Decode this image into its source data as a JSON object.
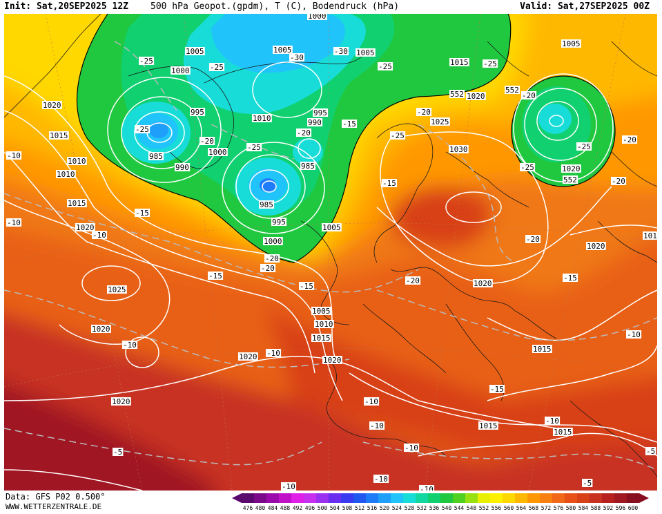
{
  "header": {
    "init": "Init: Sat,20SEP2025 12Z",
    "title": "500 hPa Geopot.(gpdm), T (C), Bodendruck (hPa)",
    "valid": "Valid: Sat,27SEP2025 00Z"
  },
  "footer": {
    "data_source": "Data: GFS P02 0.500°",
    "website": "WWW.WETTERZENTRALE.DE"
  },
  "legend": {
    "values": [
      "476",
      "480",
      "484",
      "488",
      "492",
      "496",
      "500",
      "504",
      "508",
      "512",
      "516",
      "520",
      "524",
      "528",
      "532",
      "536",
      "540",
      "544",
      "548",
      "552",
      "556",
      "560",
      "564",
      "568",
      "572",
      "576",
      "580",
      "584",
      "588",
      "592",
      "596",
      "600"
    ],
    "colors": [
      "#5a0a6e",
      "#7a0a8a",
      "#9a0aaa",
      "#c010c8",
      "#e020e8",
      "#c830f0",
      "#9a30f0",
      "#6a2ef0",
      "#3a3af0",
      "#2058f0",
      "#1e7cf8",
      "#1ea0fa",
      "#20c4fa",
      "#18dcd8",
      "#10d8a0",
      "#10d070",
      "#20c840",
      "#50d020",
      "#98e010",
      "#e8f000",
      "#fff000",
      "#ffd800",
      "#ffb800",
      "#ff9800",
      "#f88010",
      "#f06818",
      "#e85018",
      "#d84018",
      "#c83020",
      "#b82020",
      "#a01820",
      "#880f20"
    ]
  },
  "isobar_labels": [
    {
      "text": "1000"
    },
    {
      "text": "1005"
    },
    {
      "text": "1005"
    },
    {
      "text": "1000"
    },
    {
      "text": "1020"
    },
    {
      "text": "1015"
    },
    {
      "text": "995"
    },
    {
      "text": "985"
    },
    {
      "text": "990"
    },
    {
      "text": "1000"
    },
    {
      "text": "1010"
    },
    {
      "text": "995"
    },
    {
      "text": "990"
    },
    {
      "text": "985"
    },
    {
      "text": "985"
    },
    {
      "text": "995"
    },
    {
      "text": "1000"
    },
    {
      "text": "1005"
    },
    {
      "text": "1010"
    },
    {
      "text": "1010"
    },
    {
      "text": "1015"
    },
    {
      "text": "1020"
    },
    {
      "text": "1025"
    },
    {
      "text": "1020"
    },
    {
      "text": "1020"
    },
    {
      "text": "1005"
    },
    {
      "text": "1010"
    },
    {
      "text": "1015"
    },
    {
      "text": "1020"
    },
    {
      "text": "1025"
    },
    {
      "text": "1030"
    },
    {
      "text": "1020"
    },
    {
      "text": "1015"
    },
    {
      "text": "1015"
    },
    {
      "text": "1015"
    },
    {
      "text": "1020"
    },
    {
      "text": "1005"
    },
    {
      "text": "1020"
    },
    {
      "text": "1020"
    },
    {
      "text": "101"
    },
    {
      "text": "1005"
    },
    {
      "text": "1015"
    },
    {
      "text": "1020"
    }
  ],
  "temp_labels": [
    {
      "text": "-25"
    },
    {
      "text": "-25"
    },
    {
      "text": "-25"
    },
    {
      "text": "-20"
    },
    {
      "text": "-25"
    },
    {
      "text": "-30"
    },
    {
      "text": "-30"
    },
    {
      "text": "-25"
    },
    {
      "text": "-20"
    },
    {
      "text": "-15"
    },
    {
      "text": "-25"
    },
    {
      "text": "-20"
    },
    {
      "text": "-20"
    },
    {
      "text": "-25"
    },
    {
      "text": "-20"
    },
    {
      "text": "-15"
    },
    {
      "text": "-10"
    },
    {
      "text": "-10"
    },
    {
      "text": "-15"
    },
    {
      "text": "-20"
    },
    {
      "text": "-15"
    },
    {
      "text": "-15"
    },
    {
      "text": "-20"
    },
    {
      "text": "-20"
    },
    {
      "text": "-15"
    },
    {
      "text": "-10"
    },
    {
      "text": "-10"
    },
    {
      "text": "-10"
    },
    {
      "text": "-10"
    },
    {
      "text": "-15"
    },
    {
      "text": "-10"
    },
    {
      "text": "-10"
    },
    {
      "text": "-10"
    },
    {
      "text": "-5"
    },
    {
      "text": "-10"
    },
    {
      "text": "-10"
    },
    {
      "text": "-5"
    },
    {
      "text": "-5"
    },
    {
      "text": "-10"
    },
    {
      "text": "-20"
    },
    {
      "text": "-25"
    },
    {
      "text": "-25"
    },
    {
      "text": "-10"
    },
    {
      "text": "-20"
    }
  ],
  "contour_labels": [
    {
      "text": "552"
    },
    {
      "text": "552"
    },
    {
      "text": "552"
    }
  ]
}
